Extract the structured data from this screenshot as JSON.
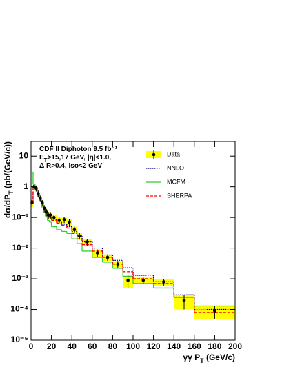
{
  "chart_data": {
    "type": "histogram",
    "annotations": [
      [
        "CDF II  Diphoton  9.5 fb⁻¹"
      ],
      [
        "E",
        "T",
        ">15,17 GeV, |η|<1.0,"
      ],
      [
        "Δ R>0.4, Iso<2 GeV"
      ]
    ],
    "xlabel": [
      "γγ P",
      "T",
      " (GeV/c)"
    ],
    "ylabel": [
      "dσ/dP",
      "T",
      " (pb/(GeV/c))"
    ],
    "bins": [
      0,
      2,
      4,
      6,
      8,
      10,
      12,
      14,
      16,
      18,
      20,
      25,
      30,
      35,
      40,
      45,
      50,
      60,
      70,
      80,
      90,
      100,
      120,
      140,
      160,
      200
    ],
    "xlim": [
      0,
      200
    ],
    "xticks": [
      0,
      20,
      40,
      60,
      80,
      100,
      120,
      140,
      160,
      180,
      200
    ],
    "ylim": [
      1e-05,
      30
    ],
    "log_y": true,
    "yticks": [
      {
        "value": 1e-05,
        "label": "10⁻⁵"
      },
      {
        "value": 0.0001,
        "label": "10⁻⁴"
      },
      {
        "value": 0.001,
        "label": "10⁻³"
      },
      {
        "value": 0.01,
        "label": "10⁻²"
      },
      {
        "value": 0.1,
        "label": "10⁻¹"
      },
      1,
      10
    ],
    "series": [
      {
        "name": "Data",
        "style": "points",
        "color": "#000000",
        "band_color": "#ffff00",
        "values": [
          0.3,
          1.0,
          0.9,
          0.6,
          0.42,
          0.3,
          0.2,
          0.15,
          0.12,
          0.12,
          0.1,
          0.08,
          0.085,
          0.07,
          0.04,
          0.025,
          0.016,
          0.007,
          0.005,
          0.003,
          0.0009,
          0.0009,
          0.0008,
          0.0002,
          9e-05
        ],
        "errors": [
          0.08,
          0.25,
          0.2,
          0.15,
          0.1,
          0.07,
          0.05,
          0.04,
          0.03,
          0.03,
          0.025,
          0.02,
          0.02,
          0.018,
          0.01,
          0.006,
          0.004,
          0.002,
          0.0012,
          0.0008,
          0.0004,
          0.0002,
          0.0002,
          0.0001,
          4e-05
        ]
      },
      {
        "name": "NNLO",
        "style": "dotted",
        "color": "#00008b",
        "values": [
          0.35,
          1.1,
          0.9,
          0.6,
          0.42,
          0.28,
          0.2,
          0.15,
          0.12,
          0.1,
          0.085,
          0.07,
          0.06,
          0.05,
          0.035,
          0.025,
          0.016,
          0.01,
          0.006,
          0.004,
          0.0023,
          0.0013,
          0.0008,
          0.0003,
          0.0001
        ]
      },
      {
        "name": "MCFM",
        "style": "solid",
        "color": "#33cc33",
        "values": [
          3,
          1.2,
          0.8,
          0.5,
          0.35,
          0.22,
          0.15,
          0.11,
          0.08,
          0.07,
          0.05,
          0.04,
          0.035,
          0.03,
          0.02,
          0.014,
          0.008,
          0.005,
          0.0035,
          0.0022,
          0.0012,
          0.0007,
          0.0005,
          0.00025,
          0.00013
        ]
      },
      {
        "name": "SHERPA",
        "style": "dashed",
        "color": "#ff0000",
        "values": [
          0.3,
          1.0,
          0.9,
          0.6,
          0.4,
          0.28,
          0.19,
          0.14,
          0.11,
          0.1,
          0.08,
          0.065,
          0.055,
          0.045,
          0.03,
          0.02,
          0.013,
          0.008,
          0.005,
          0.003,
          0.0017,
          0.001,
          0.0007,
          0.00025,
          8e-05
        ]
      }
    ]
  }
}
